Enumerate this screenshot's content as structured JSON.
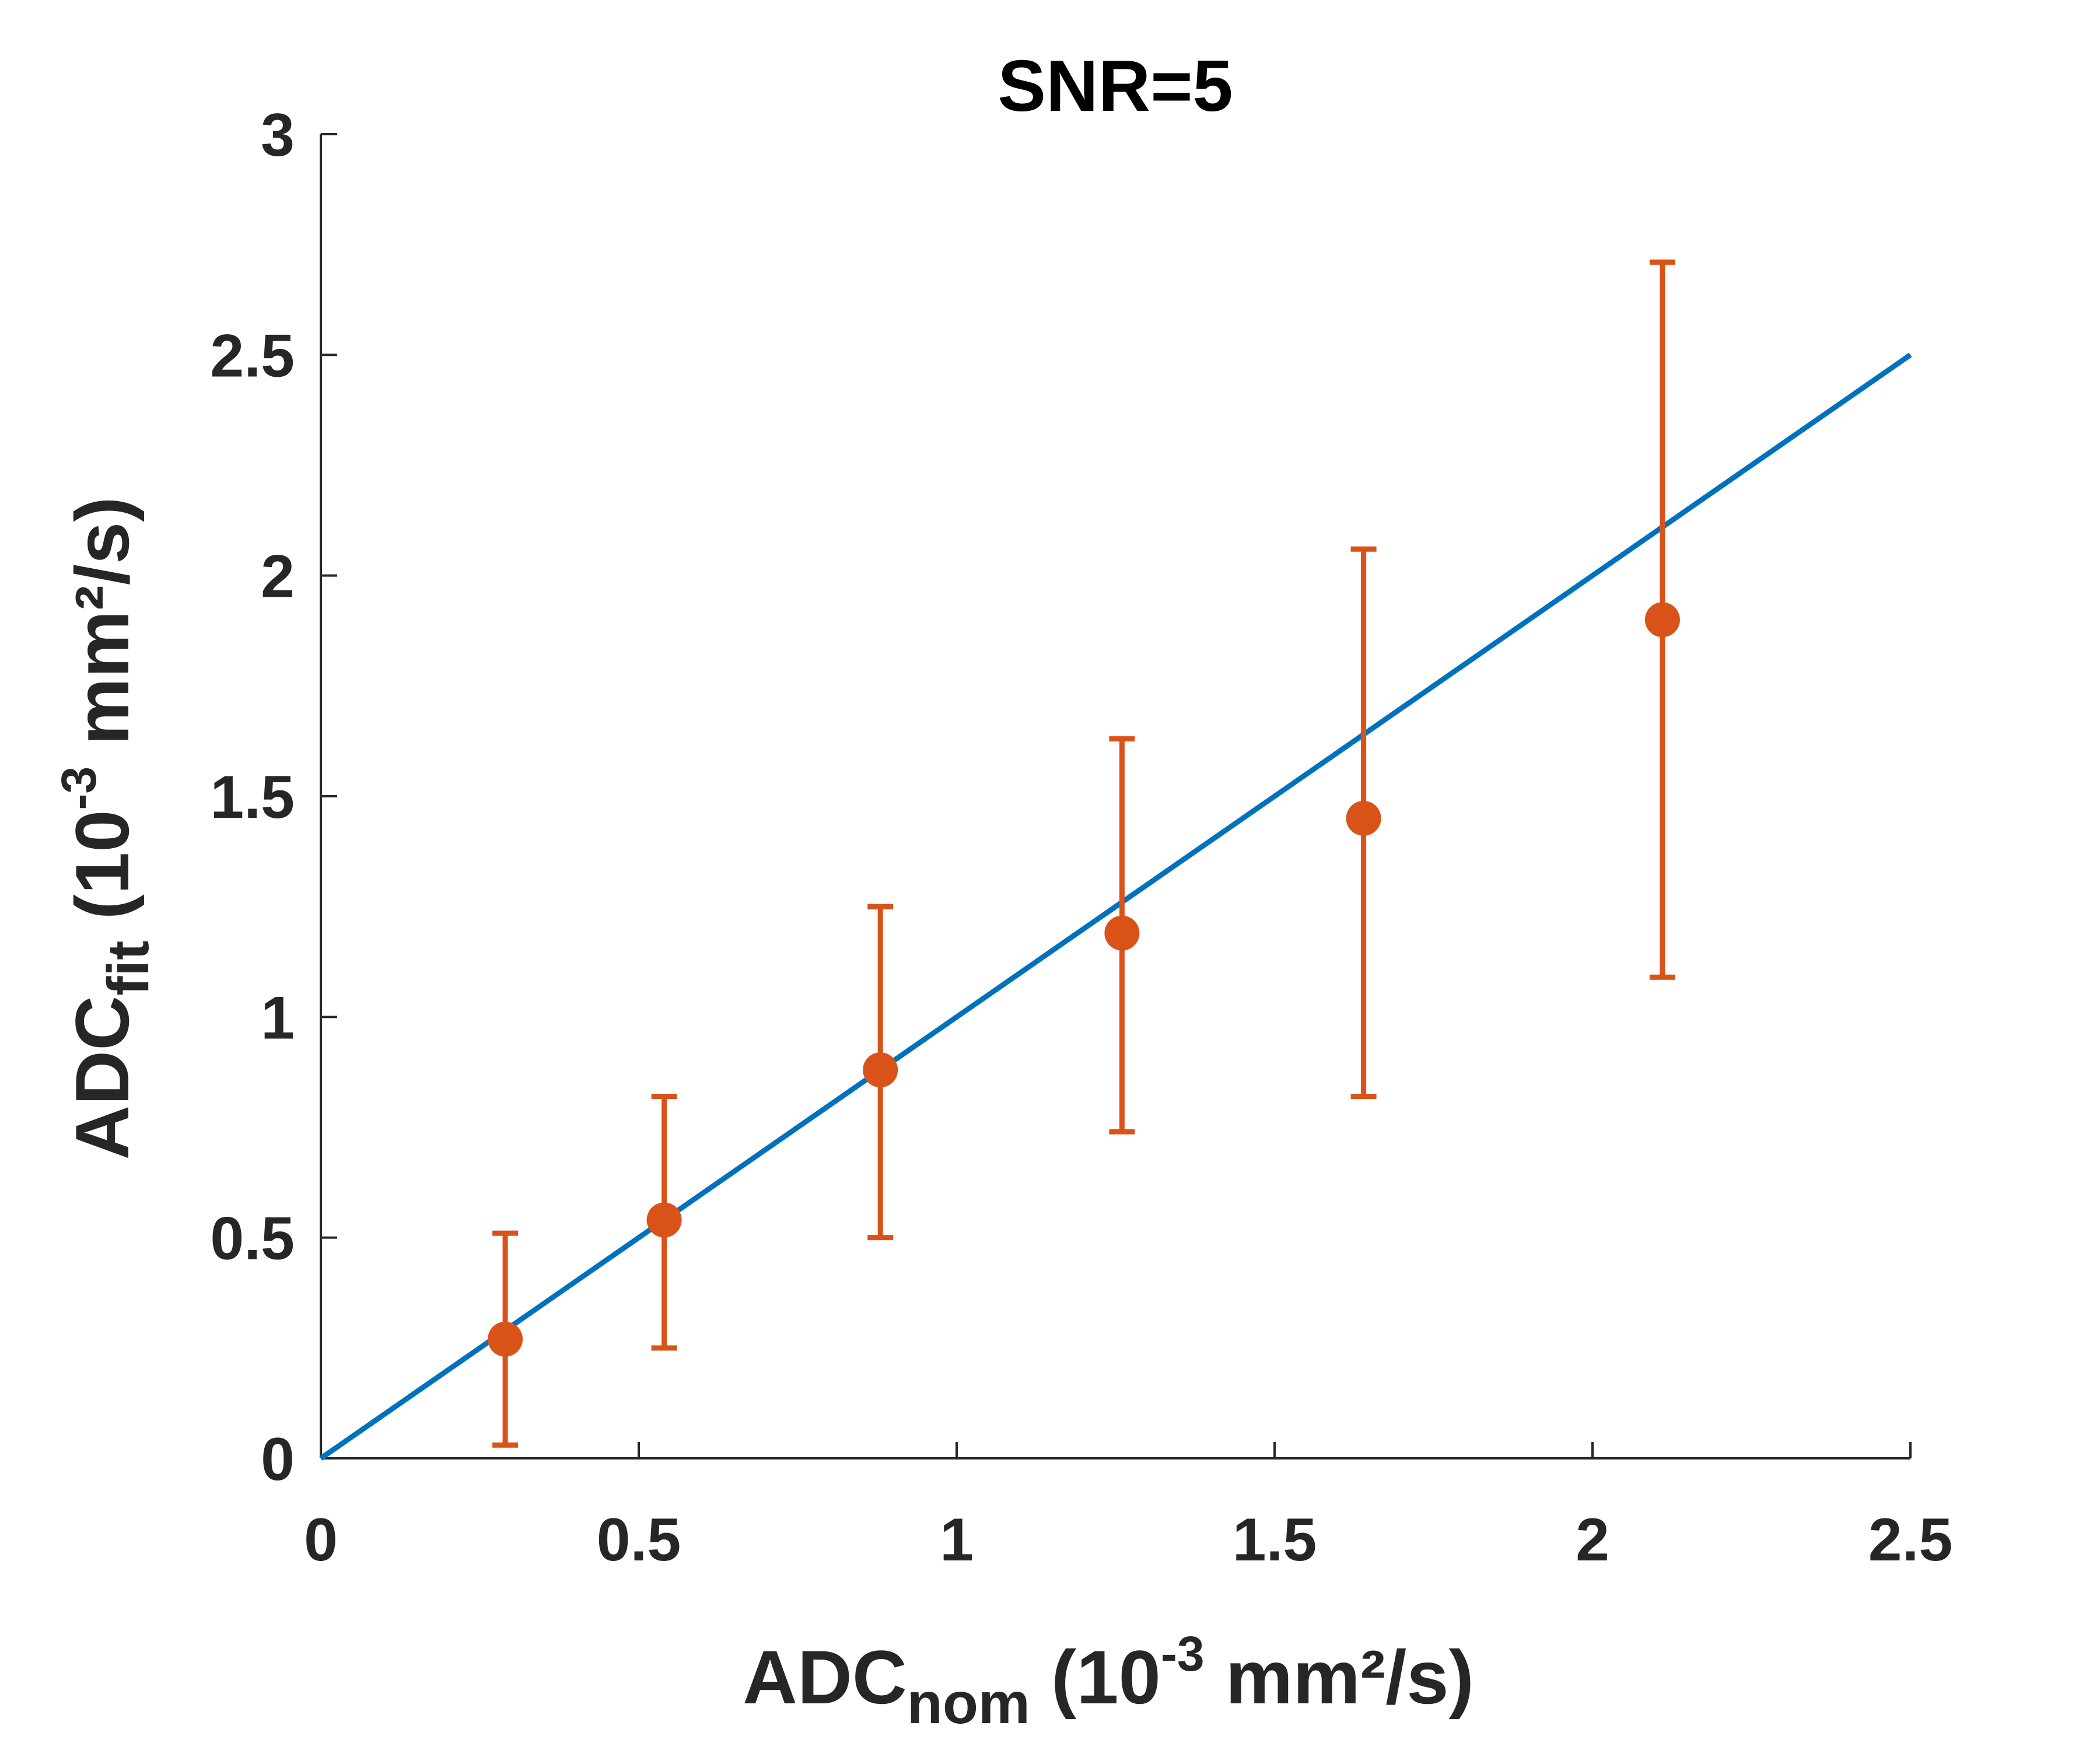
{
  "chart_data": {
    "type": "scatter",
    "title": "SNR=5",
    "xlabel": {
      "main": "ADC",
      "sub": "nom",
      "pre": " (10",
      "sup": "-3",
      "post": " mm²/s)"
    },
    "ylabel": {
      "main": "ADC",
      "sub": "fit",
      "pre": " (10",
      "sup": "-3",
      "post": " mm²/s)"
    },
    "xlim": [
      0,
      2.5
    ],
    "ylim": [
      0,
      3
    ],
    "xticks": [
      0,
      0.5,
      1,
      1.5,
      2,
      2.5
    ],
    "xtick_labels": [
      "0",
      "0.5",
      "1",
      "1.5",
      "2",
      "2.5"
    ],
    "yticks": [
      0,
      0.5,
      1,
      1.5,
      2,
      2.5,
      3
    ],
    "ytick_labels": [
      "0",
      "0.5",
      "1",
      "1.5",
      "2",
      "2.5",
      "3"
    ],
    "grid": false,
    "identity_line": {
      "x": [
        0,
        2.5
      ],
      "y": [
        0,
        2.5
      ],
      "color": "#0072BD"
    },
    "series": [
      {
        "color": "#D95319",
        "x": [
          0.29,
          0.54,
          0.88,
          1.26,
          1.64,
          2.11
        ],
        "y": [
          0.27,
          0.54,
          0.88,
          1.19,
          1.45,
          1.9
        ],
        "err_lower": [
          0.03,
          0.25,
          0.5,
          0.74,
          0.82,
          1.09
        ],
        "err_upper": [
          0.51,
          0.82,
          1.25,
          1.63,
          2.06,
          2.71
        ]
      }
    ]
  }
}
